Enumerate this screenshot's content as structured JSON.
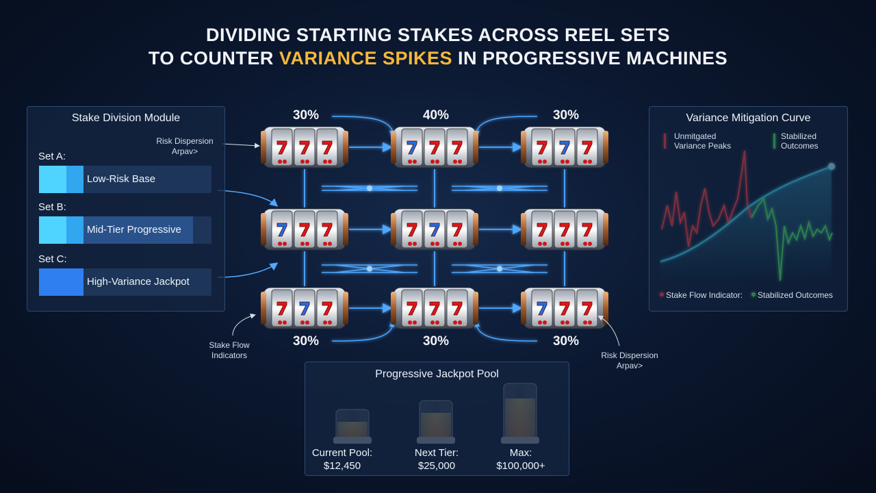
{
  "title": {
    "line1": "DIVIDING STARTING STAKES ACROSS REEL SETS",
    "line2_start": "TO COUNTER",
    "line2_highlight": "VARIANCE SPIKES",
    "line2_end": "IN PROGRESSIVE MACHINES"
  },
  "stake_module": {
    "title": "Stake Division Module",
    "sets": [
      {
        "label": "Set A:",
        "name": "Low-Risk Base"
      },
      {
        "label": "Set B:",
        "name": "Mid-Tier Progressive"
      },
      {
        "label": "Set C:",
        "name": "High-Variance Jackpot"
      }
    ]
  },
  "reel_grid": {
    "top_shares": [
      "30%",
      "40%",
      "30%"
    ],
    "bottom_shares": [
      "30%",
      "30%",
      "30%"
    ]
  },
  "annotations": {
    "risk_top": {
      "line1": "Risk Dispersion",
      "line2": "Arpav>"
    },
    "stake_flow": {
      "line1": "Stake Flow",
      "line2": "Indicators"
    },
    "risk_bottom": {
      "line1": "Risk Dispersion",
      "line2": "Arpav>"
    }
  },
  "variance_panel": {
    "title": "Variance Mitigation Curve",
    "legend": [
      {
        "line1": "Unmitgated",
        "line2": "Variance Peaks"
      },
      {
        "line1": "Stabilized",
        "line2": "Outcomes"
      }
    ],
    "footer": [
      "Stake Flow Indicator:",
      "Stabilized Outcomes"
    ]
  },
  "jackpot": {
    "title": "Progressive Jackpot Pool",
    "tiers": [
      {
        "label": "Current Pool:",
        "amount": "$12,450"
      },
      {
        "label": "Next Tier:",
        "amount": "$25,000"
      },
      {
        "label": "Max:",
        "amount": "$100,000+"
      }
    ]
  }
}
